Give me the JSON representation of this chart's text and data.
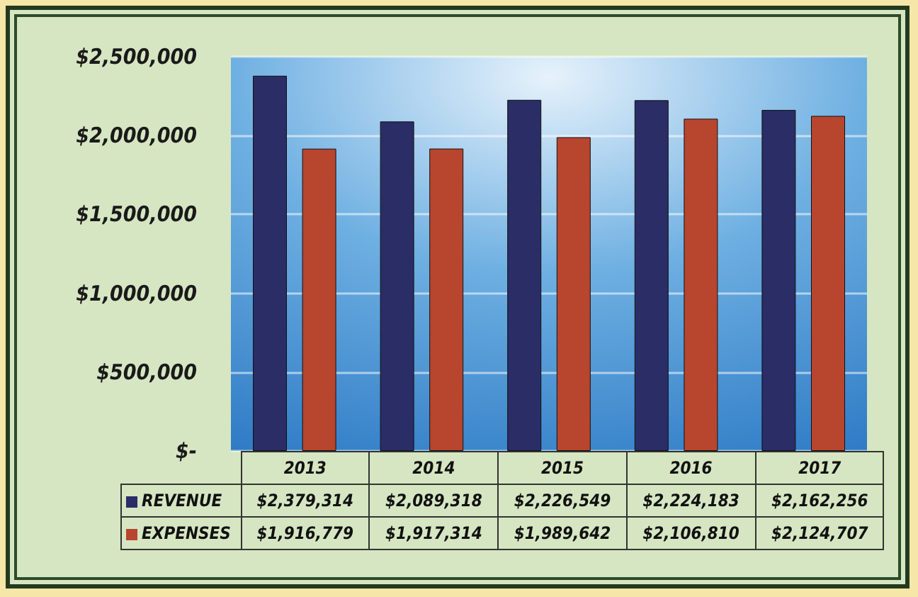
{
  "chart_data": {
    "type": "bar",
    "categories": [
      "2013",
      "2014",
      "2015",
      "2016",
      "2017"
    ],
    "series": [
      {
        "name": "REVENUE",
        "color": "#2b2d66",
        "values": [
          2379314,
          2089318,
          2226549,
          2224183,
          2162256
        ],
        "value_labels": [
          "$2,379,314",
          "$2,089,318",
          "$2,226,549",
          "$2,224,183",
          "$2,162,256"
        ]
      },
      {
        "name": "EXPENSES",
        "color": "#b8452e",
        "values": [
          1916779,
          1917314,
          1989642,
          2106810,
          2124707
        ],
        "value_labels": [
          "$1,916,779",
          "$1,917,314",
          "$1,989,642",
          "$2,106,810",
          "$2,124,707"
        ]
      }
    ],
    "ylim": [
      0,
      2500000
    ],
    "yticks": [
      {
        "value": 0,
        "label": "$-"
      },
      {
        "value": 500000,
        "label": "$500,000"
      },
      {
        "value": 1000000,
        "label": "$1,000,000"
      },
      {
        "value": 1500000,
        "label": "$1,500,000"
      },
      {
        "value": 2000000,
        "label": "$2,000,000"
      },
      {
        "value": 2500000,
        "label": "$2,500,000"
      }
    ],
    "grid": "y",
    "legend": "bottom left"
  }
}
